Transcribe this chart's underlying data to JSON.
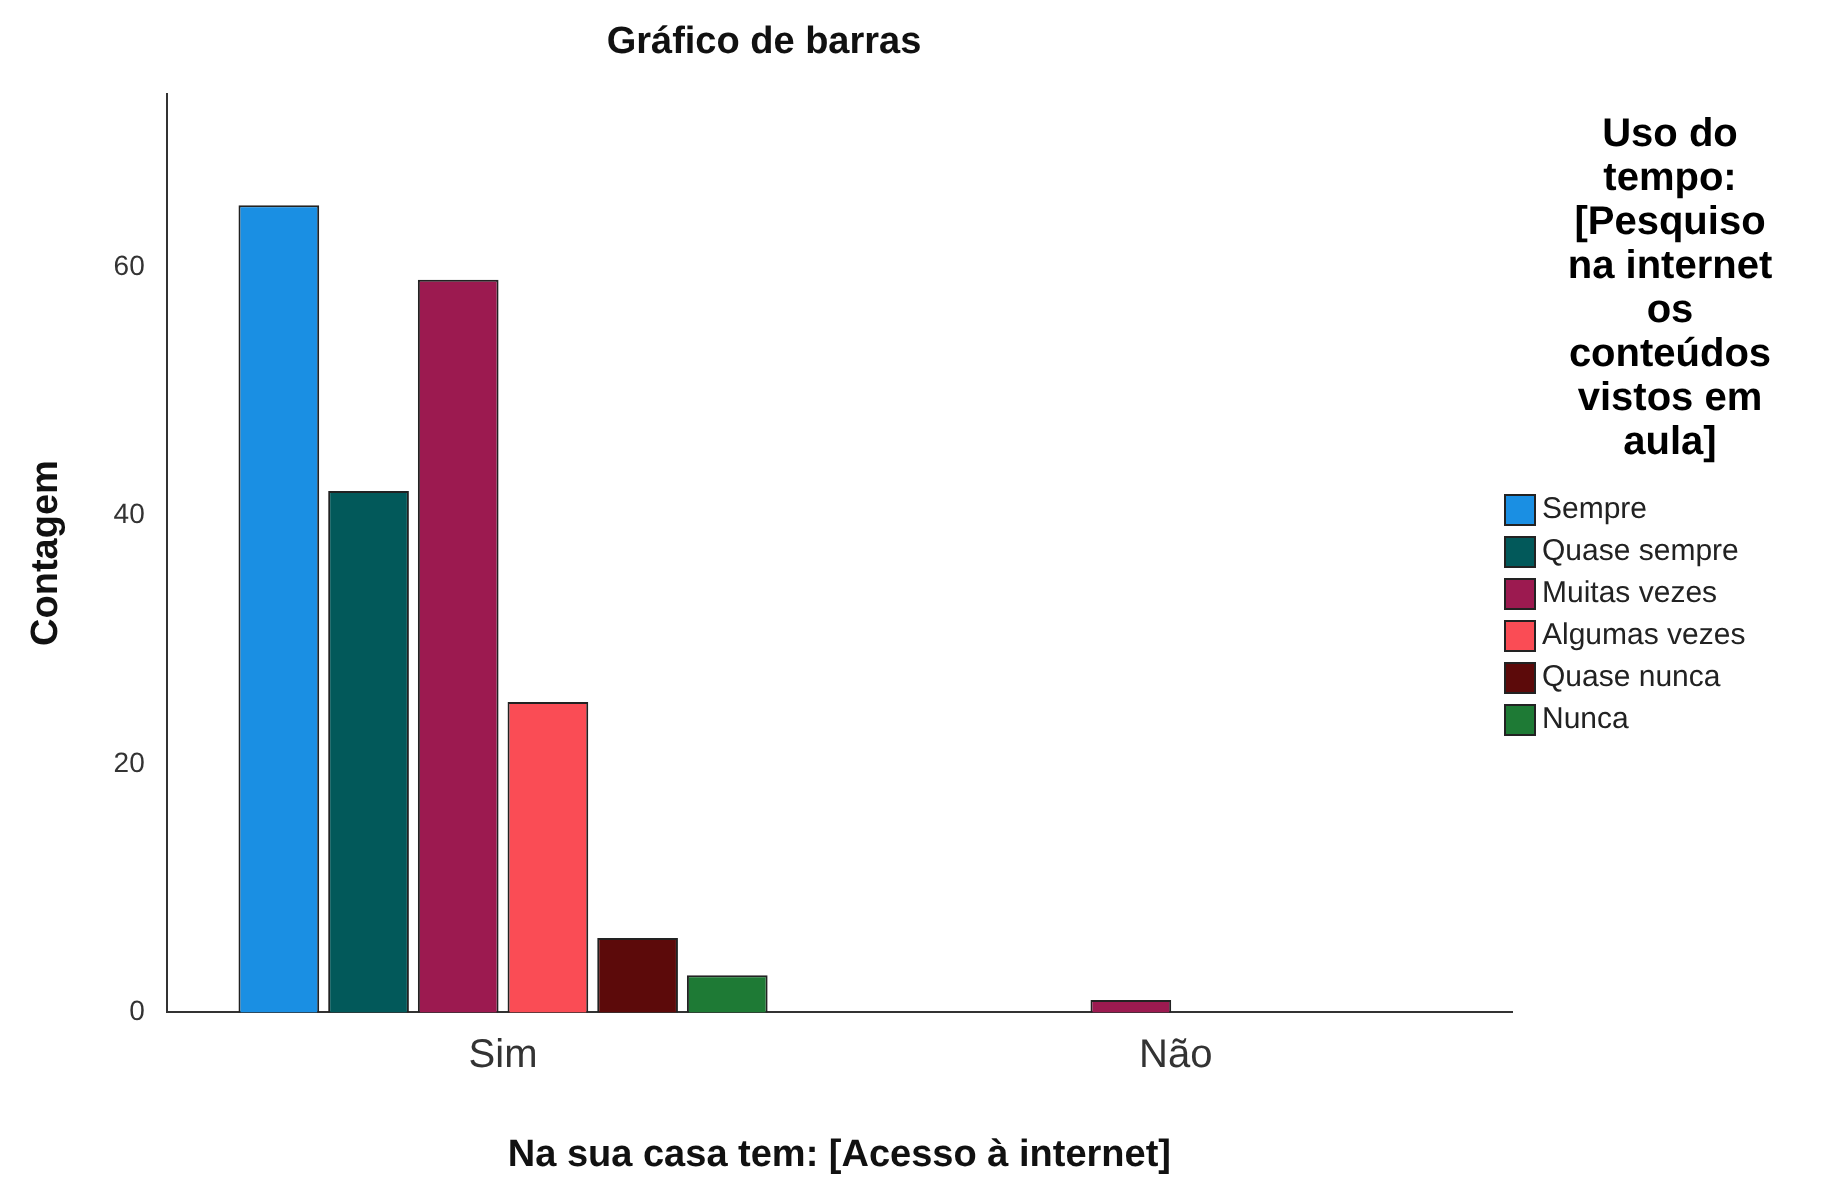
{
  "chart_data": {
    "type": "bar",
    "title": "Gráfico de barras",
    "xlabel": "Na sua casa tem: [Acesso à internet]",
    "ylabel": "Contagem",
    "legend_title": "Uso do tempo: [Pesquiso na internet os conteúdos vistos em aula]",
    "categories": [
      "Sim",
      "Não"
    ],
    "series": [
      {
        "name": "Sempre",
        "color": "#1a8fe3",
        "values": [
          65,
          0
        ]
      },
      {
        "name": "Quase sempre",
        "color": "#02595a",
        "values": [
          42,
          0
        ]
      },
      {
        "name": "Muitas vezes",
        "color": "#9c1a50",
        "values": [
          59,
          1
        ]
      },
      {
        "name": "Algumas vezes",
        "color": "#fa4c55",
        "values": [
          25,
          0
        ]
      },
      {
        "name": "Quase nunca",
        "color": "#5c0a0a",
        "values": [
          6,
          0
        ]
      },
      {
        "name": "Nunca",
        "color": "#1e7a35",
        "values": [
          3,
          0
        ]
      }
    ],
    "ylim": [
      0,
      74
    ],
    "yticks": [
      0,
      20,
      40,
      60
    ],
    "grid": false,
    "legend": "right"
  }
}
